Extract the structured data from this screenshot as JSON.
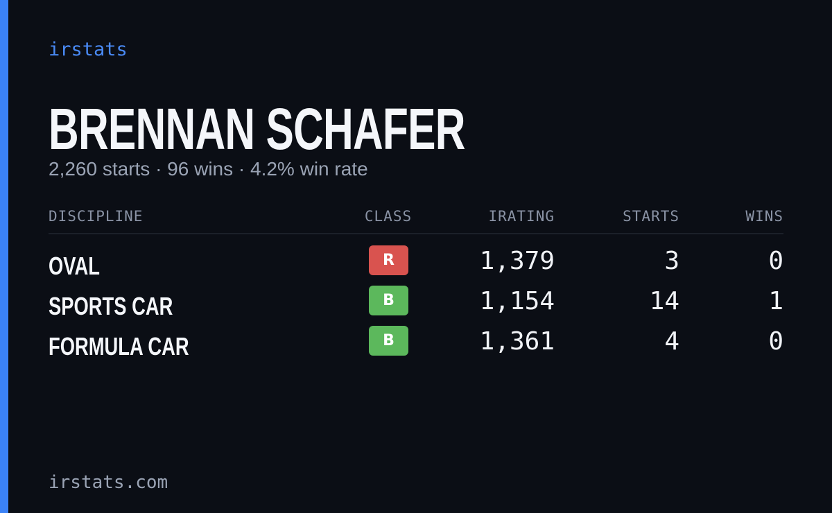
{
  "brand": "irstats",
  "driver": {
    "name": "BRENNAN SCHAFER",
    "summary": "2,260 starts · 96 wins · 4.2% win rate"
  },
  "table": {
    "headers": [
      "DISCIPLINE",
      "CLASS",
      "IRATING",
      "STARTS",
      "WINS"
    ],
    "rows": [
      {
        "discipline": "OVAL",
        "class": "R",
        "class_color": "#d9534f",
        "irating": "1,379",
        "starts": "3",
        "wins": "0"
      },
      {
        "discipline": "SPORTS CAR",
        "class": "B",
        "class_color": "#5cb85c",
        "irating": "1,154",
        "starts": "14",
        "wins": "1"
      },
      {
        "discipline": "FORMULA CAR",
        "class": "B",
        "class_color": "#5cb85c",
        "irating": "1,361",
        "starts": "4",
        "wins": "0"
      }
    ]
  },
  "footer": "irstats.com"
}
